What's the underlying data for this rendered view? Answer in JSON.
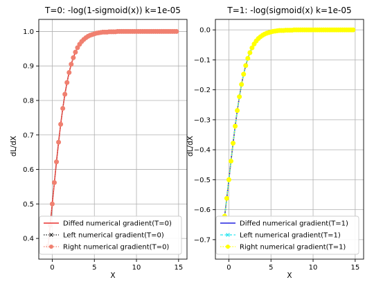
{
  "chart_data": [
    {
      "type": "line",
      "title": "T=0: -log(1-sigmoid(x)) k=1e-05",
      "xlabel": "X",
      "ylabel": "dL/dX",
      "xlim": [
        -1.6,
        16
      ],
      "ylim": [
        0.34,
        1.035
      ],
      "xticks": [
        0,
        5,
        10,
        15
      ],
      "yticks": [
        0.4,
        0.5,
        0.6,
        0.7,
        0.8,
        0.9,
        1.0
      ],
      "ytick_labels": [
        "0.4",
        "0.5",
        "0.6",
        "0.7",
        "0.8",
        "0.9",
        "1.0"
      ],
      "grid": true,
      "legend_position": "lower right",
      "x": [
        -0.5,
        -0.25,
        0.0,
        0.25,
        0.5,
        0.75,
        1.0,
        1.25,
        1.5,
        1.75,
        2.0,
        2.25,
        2.5,
        2.75,
        3.0,
        3.25,
        3.5,
        3.75,
        4.0,
        4.25,
        4.5,
        4.75,
        5.0,
        5.25,
        5.5,
        5.75,
        6.0,
        6.25,
        6.5,
        6.75,
        7.0,
        7.25,
        7.5,
        7.75,
        8.0,
        8.25,
        8.5,
        8.75,
        9.0,
        9.25,
        9.5,
        9.75,
        10.0,
        10.25,
        10.5,
        10.75,
        11.0,
        11.25,
        11.5,
        11.75,
        12.0,
        12.25,
        12.5,
        12.75,
        13.0,
        13.25,
        13.5,
        13.75,
        14.0,
        14.25,
        14.5,
        14.75
      ],
      "series": [
        {
          "name": "Diffed numerical gradient(T=0)",
          "color": "#e8302f",
          "linestyle": "solid",
          "marker": "none",
          "values": [
            0.378,
            0.438,
            0.5,
            0.562,
            0.622,
            0.679,
            0.731,
            0.777,
            0.818,
            0.852,
            0.881,
            0.905,
            0.924,
            0.94,
            0.953,
            0.963,
            0.971,
            0.977,
            0.982,
            0.986,
            0.989,
            0.991,
            0.993,
            0.995,
            0.996,
            0.997,
            0.998,
            0.998,
            0.998,
            0.999,
            0.999,
            0.999,
            0.999,
            1.0,
            1.0,
            1.0,
            1.0,
            1.0,
            1.0,
            1.0,
            1.0,
            1.0,
            1.0,
            1.0,
            1.0,
            1.0,
            1.0,
            1.0,
            1.0,
            1.0,
            1.0,
            1.0,
            1.0,
            1.0,
            1.0,
            1.0,
            1.0,
            1.0,
            1.0,
            1.0,
            1.0,
            1.0
          ]
        },
        {
          "name": "Left numerical gradient(T=0)",
          "color": "#1a1a1a",
          "linestyle": "dotted",
          "marker": "x",
          "values": [
            0.378,
            0.438,
            0.5,
            0.562,
            0.622,
            0.679,
            0.731,
            0.777,
            0.818,
            0.852,
            0.881,
            0.905,
            0.924,
            0.94,
            0.953,
            0.963,
            0.971,
            0.977,
            0.982,
            0.986,
            0.989,
            0.991,
            0.993,
            0.995,
            0.996,
            0.997,
            0.998,
            0.998,
            0.998,
            0.999,
            0.999,
            0.999,
            0.999,
            1.0,
            1.0,
            1.0,
            1.0,
            1.0,
            1.0,
            1.0,
            1.0,
            1.0,
            1.0,
            1.0,
            1.0,
            1.0,
            1.0,
            1.0,
            1.0,
            1.0,
            1.0,
            1.0,
            1.0,
            1.0,
            1.0,
            1.0,
            1.0,
            1.0,
            1.0,
            1.0,
            1.0,
            1.0
          ]
        },
        {
          "name": "Right numerical gradient(T=0)",
          "color": "#f08070",
          "linestyle": "dotted",
          "marker": "o",
          "values": [
            0.378,
            0.438,
            0.5,
            0.562,
            0.622,
            0.679,
            0.731,
            0.777,
            0.818,
            0.852,
            0.881,
            0.905,
            0.924,
            0.94,
            0.953,
            0.963,
            0.971,
            0.977,
            0.982,
            0.986,
            0.989,
            0.991,
            0.993,
            0.995,
            0.996,
            0.997,
            0.998,
            0.998,
            0.998,
            0.999,
            0.999,
            0.999,
            0.999,
            1.0,
            1.0,
            1.0,
            1.0,
            1.0,
            1.0,
            1.0,
            1.0,
            1.0,
            1.0,
            1.0,
            1.0,
            1.0,
            1.0,
            1.0,
            1.0,
            1.0,
            1.0,
            1.0,
            1.0,
            1.0,
            1.0,
            1.0,
            1.0,
            1.0,
            1.0,
            1.0,
            1.0,
            1.0
          ]
        }
      ]
    },
    {
      "type": "line",
      "title": "T=1: -log(sigmoid(x) k=1e-05",
      "xlabel": "X",
      "ylabel": "dL/dX",
      "xlim": [
        -1.6,
        16
      ],
      "ylim": [
        -0.765,
        0.035
      ],
      "xticks": [
        0,
        5,
        10,
        15
      ],
      "yticks": [
        0.0,
        -0.1,
        -0.2,
        -0.3,
        -0.4,
        -0.5,
        -0.6,
        -0.7
      ],
      "ytick_labels": [
        "0.0",
        "−0.1",
        "−0.2",
        "−0.3",
        "−0.4",
        "−0.5",
        "−0.6",
        "−0.7"
      ],
      "grid": true,
      "legend_position": "lower right",
      "x": [
        -0.5,
        -0.25,
        0.0,
        0.25,
        0.5,
        0.75,
        1.0,
        1.25,
        1.5,
        1.75,
        2.0,
        2.25,
        2.5,
        2.75,
        3.0,
        3.25,
        3.5,
        3.75,
        4.0,
        4.25,
        4.5,
        4.75,
        5.0,
        5.25,
        5.5,
        5.75,
        6.0,
        6.25,
        6.5,
        6.75,
        7.0,
        7.25,
        7.5,
        7.75,
        8.0,
        8.25,
        8.5,
        8.75,
        9.0,
        9.25,
        9.5,
        9.75,
        10.0,
        10.25,
        10.5,
        10.75,
        11.0,
        11.25,
        11.5,
        11.75,
        12.0,
        12.25,
        12.5,
        12.75,
        13.0,
        13.25,
        13.5,
        13.75,
        14.0,
        14.25,
        14.5,
        14.75
      ],
      "series": [
        {
          "name": "Diffed numerical gradient(T=1)",
          "color": "#2020e0",
          "linestyle": "solid",
          "marker": "none",
          "values": [
            -0.622,
            -0.562,
            -0.5,
            -0.438,
            -0.378,
            -0.321,
            -0.269,
            -0.223,
            -0.182,
            -0.148,
            -0.119,
            -0.095,
            -0.076,
            -0.06,
            -0.047,
            -0.037,
            -0.029,
            -0.023,
            -0.018,
            -0.014,
            -0.011,
            -0.009,
            -0.007,
            -0.005,
            -0.004,
            -0.003,
            -0.002,
            -0.002,
            -0.002,
            -0.001,
            -0.001,
            -0.001,
            -0.001,
            0.0,
            0.0,
            0.0,
            0.0,
            0.0,
            0.0,
            0.0,
            0.0,
            0.0,
            0.0,
            0.0,
            0.0,
            0.0,
            0.0,
            0.0,
            0.0,
            0.0,
            0.0,
            0.0,
            0.0,
            0.0,
            0.0,
            0.0,
            0.0,
            0.0,
            0.0,
            0.0,
            0.0,
            0.0
          ]
        },
        {
          "name": "Left numerical gradient(T=1)",
          "color": "#22e5f0",
          "linestyle": "dashed",
          "marker": "x",
          "values": [
            -0.622,
            -0.562,
            -0.5,
            -0.438,
            -0.378,
            -0.321,
            -0.269,
            -0.223,
            -0.182,
            -0.148,
            -0.119,
            -0.095,
            -0.076,
            -0.06,
            -0.047,
            -0.037,
            -0.029,
            -0.023,
            -0.018,
            -0.014,
            -0.011,
            -0.009,
            -0.007,
            -0.005,
            -0.004,
            -0.003,
            -0.002,
            -0.002,
            -0.002,
            -0.001,
            -0.001,
            -0.001,
            -0.001,
            0.0,
            0.0,
            0.0,
            0.0,
            0.0,
            0.0,
            0.0,
            0.0,
            0.0,
            0.0,
            0.0,
            0.0,
            0.0,
            0.0,
            0.0,
            0.0,
            0.0,
            0.0,
            0.0,
            0.0,
            0.0,
            0.0,
            0.0,
            0.0,
            0.0,
            0.0,
            0.0,
            0.0,
            0.0
          ]
        },
        {
          "name": "Right numerical gradient(T=1)",
          "color": "#ffff00",
          "linestyle": "dotted",
          "marker": "o",
          "values": [
            -0.622,
            -0.562,
            -0.5,
            -0.438,
            -0.378,
            -0.321,
            -0.269,
            -0.223,
            -0.182,
            -0.148,
            -0.119,
            -0.095,
            -0.076,
            -0.06,
            -0.047,
            -0.037,
            -0.029,
            -0.023,
            -0.018,
            -0.014,
            -0.011,
            -0.009,
            -0.007,
            -0.005,
            -0.004,
            -0.003,
            -0.002,
            -0.002,
            -0.002,
            -0.001,
            -0.001,
            -0.001,
            -0.001,
            0.0,
            0.0,
            0.0,
            0.0,
            0.0,
            0.0,
            0.0,
            0.0,
            0.0,
            0.0,
            0.0,
            0.0,
            0.0,
            0.0,
            0.0,
            0.0,
            0.0,
            0.0,
            0.0,
            0.0,
            0.0,
            0.0,
            0.0,
            0.0,
            0.0,
            0.0,
            0.0,
            0.0,
            0.0
          ]
        }
      ]
    }
  ]
}
